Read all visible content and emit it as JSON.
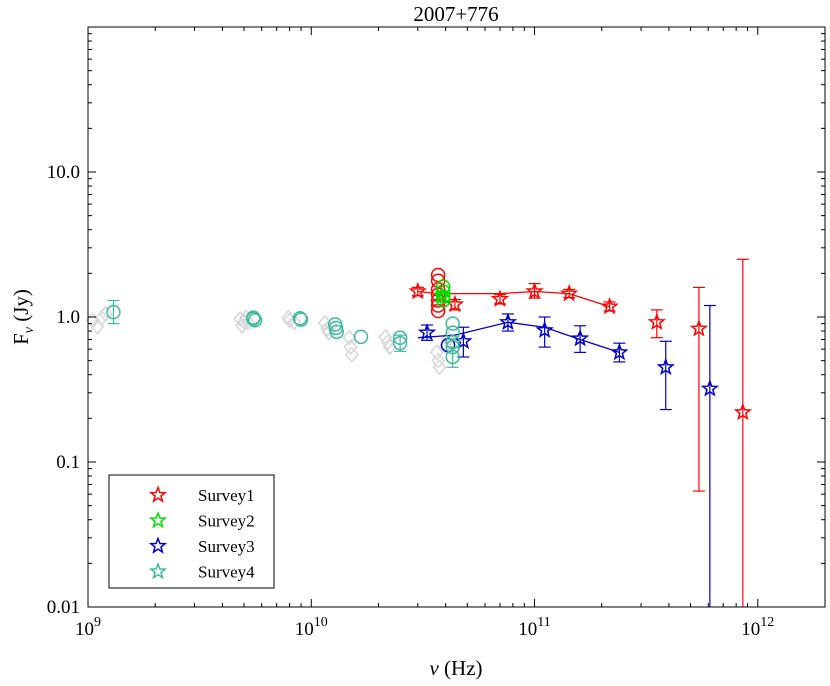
{
  "chart_data": {
    "type": "scatter",
    "title": "2007+776",
    "xlabel": "ν (Hz)",
    "ylabel": "Fν (Jy)",
    "ylabel_main": "F",
    "ylabel_sub": "ν",
    "ylabel_unit": " (Jy)",
    "xlabel_sym": "ν",
    "xlabel_unit": " (Hz)",
    "xscale": "log",
    "yscale": "log",
    "xlim": [
      1000000000,
      2000000000000
    ],
    "ylim": [
      0.01,
      100
    ],
    "x_ticks": [
      {
        "value": 1000000000,
        "base": "10",
        "exp": "9"
      },
      {
        "value": 10000000000,
        "base": "10",
        "exp": "10"
      },
      {
        "value": 100000000000,
        "base": "10",
        "exp": "11"
      },
      {
        "value": 1000000000000,
        "base": "10",
        "exp": "12"
      }
    ],
    "y_ticks": [
      {
        "value": 0.01,
        "label": "0.01"
      },
      {
        "value": 0.1,
        "label": "0.1"
      },
      {
        "value": 1,
        "label": "1.0"
      },
      {
        "value": 10,
        "label": "10.0"
      }
    ],
    "legend_position": "bottom-left",
    "series": [
      {
        "name": "Survey1",
        "color": "#ff0000",
        "marker": "star",
        "line_x": [
          30000000000,
          37000000000,
          45000000000,
          70000000000,
          100000000000,
          143000000000,
          217000000000
        ],
        "line_y": [
          1.5,
          1.45,
          1.45,
          1.45,
          1.5,
          1.45,
          1.18
        ],
        "points": [
          {
            "x": 30000000000,
            "y": 1.5,
            "lo": 1.4,
            "hi": 1.6
          },
          {
            "x": 44000000000,
            "y": 1.22,
            "lo": 1.12,
            "hi": 1.32
          },
          {
            "x": 70000000000,
            "y": 1.33,
            "lo": 1.23,
            "hi": 1.43
          },
          {
            "x": 100000000000,
            "y": 1.5,
            "lo": 1.35,
            "hi": 1.7
          },
          {
            "x": 143000000000,
            "y": 1.45,
            "lo": 1.36,
            "hi": 1.55
          },
          {
            "x": 217000000000,
            "y": 1.18,
            "lo": 1.1,
            "hi": 1.27
          },
          {
            "x": 353000000000,
            "y": 0.92,
            "lo": 0.72,
            "hi": 1.12
          },
          {
            "x": 545000000000,
            "y": 0.83,
            "lo": 0.063,
            "hi": 1.6
          },
          {
            "x": 857000000000,
            "y": 0.22,
            "lo": 0.008,
            "hi": 2.5
          }
        ],
        "circles": [
          {
            "x": 37000000000,
            "y": 1.95
          },
          {
            "x": 37000000000,
            "y": 1.78
          },
          {
            "x": 37000000000,
            "y": 1.55
          },
          {
            "x": 37000000000,
            "y": 1.42
          },
          {
            "x": 37000000000,
            "y": 1.3
          },
          {
            "x": 37000000000,
            "y": 1.2
          },
          {
            "x": 37000000000,
            "y": 1.1
          }
        ]
      },
      {
        "name": "Survey2",
        "color": "#00e000",
        "marker": "star",
        "line_x": [],
        "line_y": [],
        "points": [
          {
            "x": 38500000000,
            "y": 1.4,
            "lo": 1.3,
            "hi": 1.5
          }
        ],
        "circles": [
          {
            "x": 39000000000,
            "y": 1.62
          },
          {
            "x": 39000000000,
            "y": 1.5
          },
          {
            "x": 39000000000,
            "y": 1.38
          },
          {
            "x": 39000000000,
            "y": 1.3
          }
        ]
      },
      {
        "name": "Survey3",
        "color": "#0000cc",
        "marker": "star",
        "line_x": [
          30000000000,
          44000000000,
          76000000000,
          111000000000,
          160000000000,
          240000000000
        ],
        "line_y": [
          0.72,
          0.75,
          0.92,
          0.85,
          0.7,
          0.57
        ],
        "points": [
          {
            "x": 33000000000,
            "y": 0.78,
            "lo": 0.69,
            "hi": 0.88
          },
          {
            "x": 48000000000,
            "y": 0.68,
            "lo": 0.53,
            "hi": 0.85
          },
          {
            "x": 76000000000,
            "y": 0.92,
            "lo": 0.8,
            "hi": 1.05
          },
          {
            "x": 111000000000,
            "y": 0.81,
            "lo": 0.62,
            "hi": 1.0
          },
          {
            "x": 160000000000,
            "y": 0.71,
            "lo": 0.57,
            "hi": 0.87
          },
          {
            "x": 240000000000,
            "y": 0.57,
            "lo": 0.49,
            "hi": 0.66
          },
          {
            "x": 387000000000,
            "y": 0.45,
            "lo": 0.23,
            "hi": 0.68
          },
          {
            "x": 610000000000,
            "y": 0.32,
            "lo": 0.008,
            "hi": 1.2
          }
        ],
        "circles": [
          {
            "x": 41000000000,
            "y": 0.64
          }
        ]
      },
      {
        "name": "Survey4",
        "color": "#3fb9a0",
        "marker": "star",
        "line_x": [],
        "line_y": [],
        "points": [],
        "circles": [
          {
            "x": 1300000000,
            "y": 1.08,
            "lo": 0.9,
            "hi": 1.3
          },
          {
            "x": 5500000000,
            "y": 0.97
          },
          {
            "x": 5500000000,
            "y": 0.99
          },
          {
            "x": 5600000000,
            "y": 0.95
          },
          {
            "x": 8900000000,
            "y": 0.98
          },
          {
            "x": 9000000000,
            "y": 0.96
          },
          {
            "x": 12800000000,
            "y": 0.89
          },
          {
            "x": 12900000000,
            "y": 0.84
          },
          {
            "x": 13000000000,
            "y": 0.79
          },
          {
            "x": 16700000000,
            "y": 0.73
          },
          {
            "x": 25000000000,
            "y": 0.72
          },
          {
            "x": 25000000000,
            "y": 0.66,
            "lo": 0.58,
            "hi": 0.75
          },
          {
            "x": 43000000000,
            "y": 0.9
          },
          {
            "x": 43000000000,
            "y": 0.78
          },
          {
            "x": 43000000000,
            "y": 0.67
          },
          {
            "x": 43000000000,
            "y": 0.62
          },
          {
            "x": 43000000000,
            "y": 0.53,
            "lo": 0.45,
            "hi": 0.62
          }
        ]
      }
    ],
    "background_points": {
      "color": "#d8d8d8",
      "marker": "diamond",
      "points": [
        {
          "x": 1050000000,
          "y": 0.95
        },
        {
          "x": 1100000000,
          "y": 0.86
        },
        {
          "x": 1150000000,
          "y": 0.98
        },
        {
          "x": 1200000000,
          "y": 1.05
        },
        {
          "x": 4800000000,
          "y": 0.97
        },
        {
          "x": 4900000000,
          "y": 0.87
        },
        {
          "x": 5000000000,
          "y": 0.93
        },
        {
          "x": 5100000000,
          "y": 0.99
        },
        {
          "x": 5200000000,
          "y": 0.92
        },
        {
          "x": 7900000000,
          "y": 0.99
        },
        {
          "x": 8000000000,
          "y": 0.95
        },
        {
          "x": 8400000000,
          "y": 0.92
        },
        {
          "x": 11500000000,
          "y": 0.91
        },
        {
          "x": 11800000000,
          "y": 0.83
        },
        {
          "x": 12000000000,
          "y": 0.78
        },
        {
          "x": 12300000000,
          "y": 0.87
        },
        {
          "x": 14800000000,
          "y": 0.72
        },
        {
          "x": 15000000000,
          "y": 0.62
        },
        {
          "x": 15200000000,
          "y": 0.55
        },
        {
          "x": 21500000000,
          "y": 0.73
        },
        {
          "x": 22000000000,
          "y": 0.67
        },
        {
          "x": 22500000000,
          "y": 0.62
        },
        {
          "x": 36500000000,
          "y": 0.57
        },
        {
          "x": 37000000000,
          "y": 0.5
        },
        {
          "x": 37500000000,
          "y": 0.45
        },
        {
          "x": 40000000000,
          "y": 0.63
        },
        {
          "x": 41000000000,
          "y": 0.71
        }
      ]
    }
  }
}
